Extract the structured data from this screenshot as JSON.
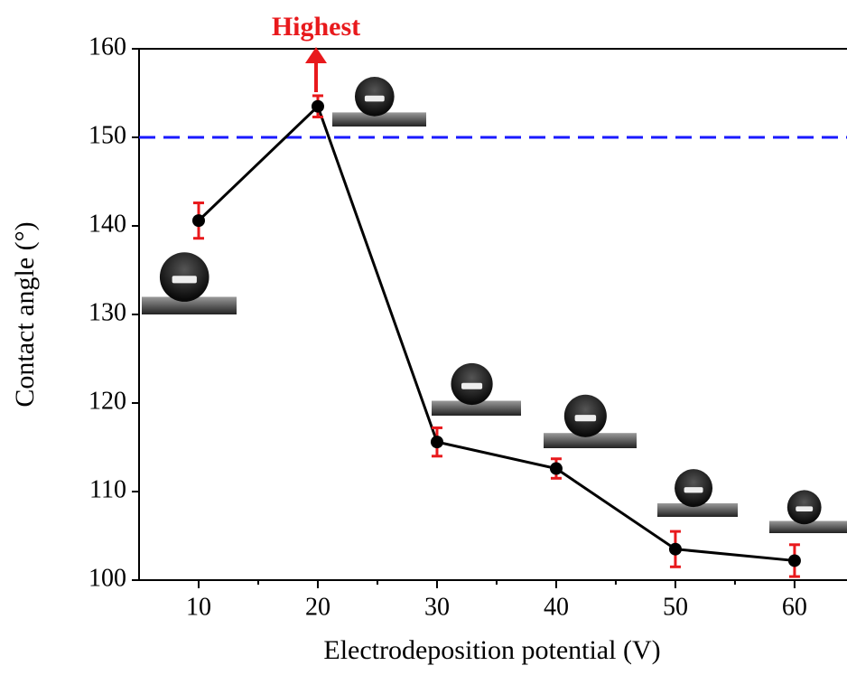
{
  "chart_data": {
    "type": "line",
    "x_label": "Electrodeposition potential (V)",
    "y_label": "Contact angle (°)",
    "annotation": "Highest",
    "x": [
      10,
      20,
      30,
      40,
      50,
      60
    ],
    "series": [
      {
        "color": "#000000",
        "error_color": "#e8191c",
        "values": [
          140.6,
          153.5,
          115.6,
          112.6,
          103.5,
          102.2
        ],
        "errors": [
          2.0,
          1.2,
          1.6,
          1.1,
          2.0,
          1.8
        ]
      }
    ],
    "reference_line": {
      "value": 150,
      "color": "#1a1aff",
      "style": "dashed"
    },
    "xlim": [
      5,
      64.4
    ],
    "ylim": [
      100,
      160
    ],
    "xticks": [
      10,
      20,
      30,
      40,
      50,
      60
    ],
    "x_minor_ticks": [
      15,
      25,
      35,
      45,
      55
    ],
    "yticks": [
      100,
      110,
      120,
      130,
      140,
      150,
      160
    ],
    "grid": false
  }
}
